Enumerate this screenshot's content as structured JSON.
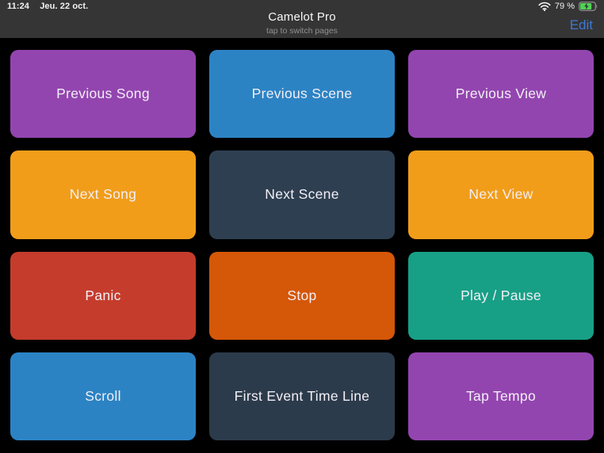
{
  "status_bar": {
    "time": "11:24",
    "date": "Jeu. 22 oct.",
    "battery_percent_label": "79 %",
    "battery_level": 0.79
  },
  "header": {
    "title": "Camelot Pro",
    "subtitle": "tap to switch pages",
    "edit_label": "Edit"
  },
  "colors": {
    "page_background": "#000000",
    "header_background": "#353535",
    "edit_link": "#3e79d2",
    "battery_fill": "#4fd355",
    "button_text": "#f2eff6"
  },
  "grid": {
    "columns": 3,
    "rows": 4,
    "buttons": [
      {
        "label": "Previous Song",
        "color": "#9345af"
      },
      {
        "label": "Previous Scene",
        "color": "#2c83c4"
      },
      {
        "label": "Previous View",
        "color": "#9345af"
      },
      {
        "label": "Next Song",
        "color": "#f19d1a"
      },
      {
        "label": "Next Scene",
        "color": "#2e3f51"
      },
      {
        "label": "Next View",
        "color": "#f19d1a"
      },
      {
        "label": "Panic",
        "color": "#c53c2c"
      },
      {
        "label": "Stop",
        "color": "#d55708"
      },
      {
        "label": "Play / Pause",
        "color": "#17a086"
      },
      {
        "label": "Scroll",
        "color": "#2c83c4"
      },
      {
        "label": "First Event Time Line",
        "color": "#2c3b4b"
      },
      {
        "label": "Tap Tempo",
        "color": "#9345af"
      }
    ]
  }
}
